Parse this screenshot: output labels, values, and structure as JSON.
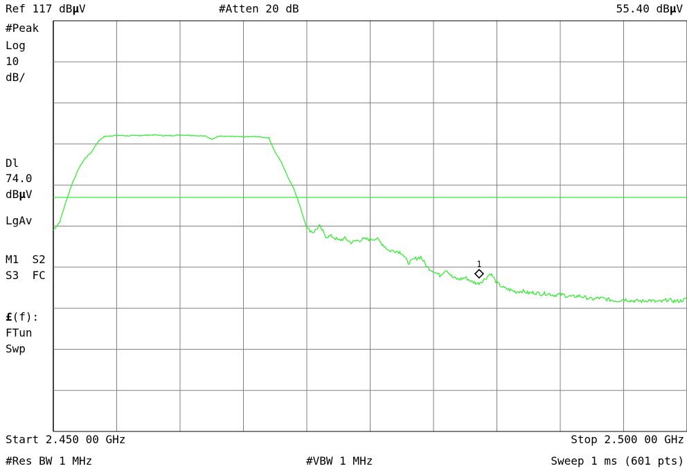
{
  "header": {
    "ref_level": "Ref 117 dB",
    "ref_unit_mu": "μ",
    "ref_unit_end": "V",
    "attenuation": "#Atten 20 dB",
    "marker_readout": "55.40 dB",
    "marker_unit_mu": "μ",
    "marker_unit_end": "V"
  },
  "left_panel": {
    "detector": "#Peak",
    "scale_type": "Log",
    "scale_value": "10",
    "scale_unit": "dB/",
    "display_line_label": "Dl",
    "display_line_value": "74.0",
    "display_line_unit_prefix": "dB",
    "display_line_unit_mu": "μ",
    "display_line_unit_end": "V",
    "averaging": "LgAv",
    "status_row1": "M1  S2",
    "status_row2": "S3  FC",
    "func_symbol": "£",
    "func_rest": "(f):",
    "ftun": "FTun",
    "swp": "Swp"
  },
  "footer": {
    "start": "Start 2.450 00 GHz",
    "stop": "Stop 2.500 00 GHz",
    "res_bw": "#Res BW 1 MHz",
    "vbw": "#VBW 1 MHz",
    "sweep": "Sweep 1 ms (601 pts)"
  },
  "colors": {
    "trace": "#33ee33",
    "grid": "#808080",
    "background": "#ffffff",
    "text": "#000000",
    "marker": "#000000"
  },
  "chart_data": {
    "type": "line",
    "title": "",
    "xlabel": "",
    "ylabel": "",
    "x_unit": "GHz",
    "y_unit": "dBμV",
    "xlim": [
      2.45,
      2.5
    ],
    "ylim": [
      17,
      117
    ],
    "grid": true,
    "grid_divisions": {
      "x": 10,
      "y": 10
    },
    "display_line": 74.0,
    "marker": {
      "label": "1",
      "x": 2.4836,
      "y": 55.4
    },
    "series": [
      {
        "x": [
          2.45,
          2.4505,
          2.451,
          2.4515,
          2.452,
          2.4525,
          2.453,
          2.4535,
          2.454,
          2.4545,
          2.455,
          2.456,
          2.457,
          2.458,
          2.459,
          2.46,
          2.461,
          2.462,
          2.4625,
          2.463,
          2.464,
          2.465,
          2.466,
          2.467,
          2.4675,
          2.468,
          2.4685,
          2.469,
          2.4695,
          2.47,
          2.4705,
          2.471,
          2.4715,
          2.472,
          2.4725,
          2.473,
          2.4735,
          2.474,
          2.4745,
          2.475,
          2.4755,
          2.476,
          2.4765,
          2.477,
          2.4775,
          2.478,
          2.4785,
          2.479,
          2.4795,
          2.48,
          2.4805,
          2.481,
          2.4815,
          2.482,
          2.4825,
          2.483,
          2.4835,
          2.484,
          2.4845,
          2.485,
          2.4855,
          2.486,
          2.4865,
          2.487,
          2.4875,
          2.488,
          2.4885,
          2.489,
          2.4895,
          2.49,
          2.4905,
          2.491,
          2.4915,
          2.492,
          2.4925,
          2.493,
          2.4935,
          2.494,
          2.4945,
          2.495,
          2.4955,
          2.496,
          2.4965,
          2.497,
          2.4975,
          2.498,
          2.4985,
          2.499,
          2.4995,
          2.5
        ],
        "y": [
          66.0,
          68.0,
          73.0,
          77.5,
          81.0,
          83.5,
          85.0,
          87.5,
          88.8,
          89.0,
          89.1,
          89.0,
          89.1,
          89.2,
          89.0,
          89.2,
          89.1,
          88.9,
          88.2,
          88.9,
          88.8,
          88.7,
          88.8,
          88.5,
          85.0,
          82.5,
          79.0,
          76.0,
          71.5,
          66.5,
          65.5,
          67.0,
          64.5,
          64.5,
          63.5,
          64.0,
          63.0,
          63.5,
          63.8,
          63.8,
          64.0,
          62.5,
          61.0,
          61.0,
          60.5,
          58.0,
          59.0,
          59.5,
          57.0,
          56.0,
          55.0,
          56.5,
          54.5,
          54.0,
          54.5,
          53.5,
          53.0,
          54.0,
          55.5,
          53.2,
          52.0,
          51.5,
          51.0,
          51.2,
          50.7,
          50.8,
          50.5,
          50.6,
          50.2,
          50.4,
          50.0,
          49.8,
          50.0,
          49.6,
          49.2,
          49.5,
          49.3,
          49.0,
          48.8,
          49.2,
          48.9,
          48.8,
          48.7,
          49.0,
          48.6,
          48.6,
          49.1,
          48.7,
          48.8,
          49.3
        ]
      }
    ]
  }
}
